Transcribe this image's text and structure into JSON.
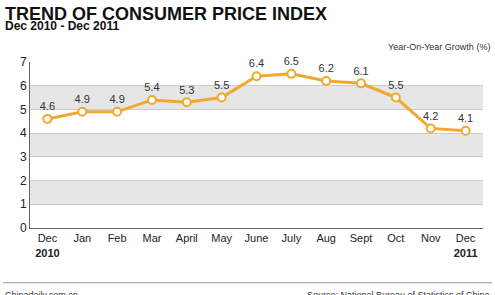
{
  "chart_data": {
    "type": "line",
    "title": "TREND OF CONSUMER PRICE INDEX",
    "subtitle": "Dec 2010 - Dec 2011",
    "y_label": "Year-On-Year Growth (%)",
    "credit": "Chinadaily.com.cn",
    "source": "Source: National Bureau of Statistics of China",
    "categories": [
      "Dec 2010",
      "Jan",
      "Feb",
      "Mar",
      "April",
      "May",
      "June",
      "July",
      "Aug",
      "Sept",
      "Oct",
      "Nov",
      "Dec 2011"
    ],
    "values": [
      4.6,
      4.9,
      4.9,
      5.4,
      5.3,
      5.5,
      6.4,
      6.5,
      6.2,
      6.1,
      5.5,
      4.2,
      4.1
    ],
    "color": "#f0a830",
    "marker": "circle",
    "ylim": [
      0,
      7
    ],
    "yticks": [
      0,
      1,
      2,
      3,
      4,
      5,
      6,
      7
    ],
    "grid": true,
    "data_labels": true
  }
}
